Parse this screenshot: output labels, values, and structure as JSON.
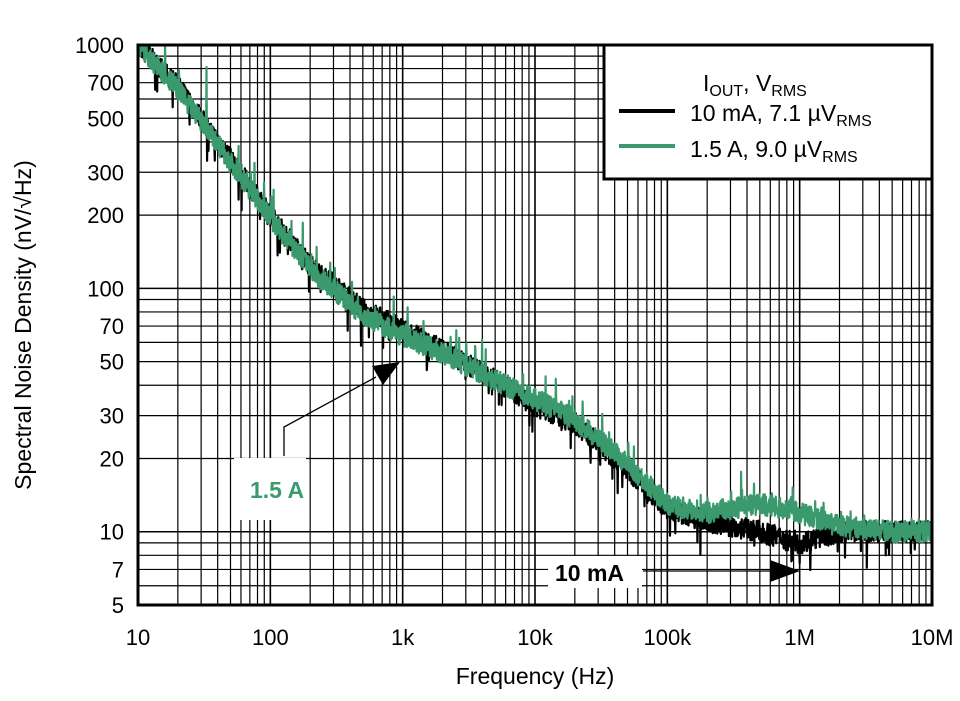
{
  "chart_data": {
    "type": "line",
    "title": "",
    "xlabel": "Frequency (Hz)",
    "ylabel": "Spectral Noise Density (nV/√Hz)",
    "x_scale": "log",
    "y_scale": "log",
    "xlim": [
      10,
      10000000
    ],
    "ylim": [
      5,
      1000
    ],
    "grid": true,
    "x_ticks": [
      {
        "v": 10,
        "label": "10"
      },
      {
        "v": 100,
        "label": "100"
      },
      {
        "v": 1000,
        "label": "1k"
      },
      {
        "v": 10000,
        "label": "10k"
      },
      {
        "v": 100000,
        "label": "100k"
      },
      {
        "v": 1000000,
        "label": "1M"
      },
      {
        "v": 10000000,
        "label": "10M"
      }
    ],
    "y_ticks": [
      {
        "v": 1000,
        "label": "1000"
      },
      {
        "v": 700,
        "label": "700"
      },
      {
        "v": 500,
        "label": "500"
      },
      {
        "v": 300,
        "label": "300"
      },
      {
        "v": 200,
        "label": "200"
      },
      {
        "v": 100,
        "label": "100"
      },
      {
        "v": 70,
        "label": "70"
      },
      {
        "v": 50,
        "label": "50"
      },
      {
        "v": 30,
        "label": "30"
      },
      {
        "v": 20,
        "label": "20"
      },
      {
        "v": 10,
        "label": "10"
      },
      {
        "v": 7,
        "label": "7"
      },
      {
        "v": 5,
        "label": "5"
      }
    ],
    "legend": {
      "placement": "top-right",
      "title_main": "I",
      "title_sub1": "OUT",
      "title_mid": ", V",
      "title_sub2": "RMS"
    },
    "series": [
      {
        "name": "10 mA, 7.1 µV",
        "name_sub": "RMS",
        "color": "#000000",
        "x": [
          10,
          20,
          50,
          100,
          200,
          500,
          1000,
          2000,
          5000,
          10000,
          20000,
          50000,
          100000,
          200000,
          500000,
          1000000,
          2000000,
          5000000,
          10000000
        ],
        "y": [
          1000,
          680,
          340,
          200,
          125,
          82,
          68,
          56,
          42,
          33,
          28,
          18,
          12.5,
          11,
          10,
          9,
          10,
          10,
          10
        ]
      },
      {
        "name": "1.5 A, 9.0 µV",
        "name_sub": "RMS",
        "color": "#3a9a6e",
        "x": [
          10,
          20,
          50,
          100,
          200,
          500,
          1000,
          2000,
          5000,
          10000,
          20000,
          50000,
          100000,
          200000,
          500000,
          1000000,
          2000000,
          5000000,
          10000000
        ],
        "y": [
          1000,
          660,
          330,
          195,
          120,
          78,
          64,
          54,
          42,
          35,
          29,
          19,
          13,
          12,
          13,
          12,
          10.5,
          10,
          10
        ]
      }
    ],
    "annotations": [
      {
        "text": "1.5 A",
        "color": "#3a9a6e",
        "points_to": [
          800,
          48
        ]
      },
      {
        "text": "10 mA",
        "color": "#000000",
        "points_to": [
          950000,
          7
        ]
      }
    ]
  }
}
